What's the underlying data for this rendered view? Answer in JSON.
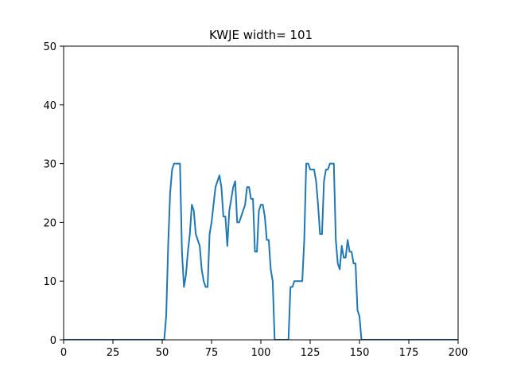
{
  "chart_data": {
    "type": "line",
    "title": "KWJE width= 101",
    "xlabel": "",
    "ylabel": "",
    "xlim": [
      0,
      200
    ],
    "ylim": [
      0,
      50
    ],
    "x_ticks": [
      0,
      25,
      50,
      75,
      100,
      125,
      150,
      175,
      200
    ],
    "y_ticks": [
      0,
      10,
      20,
      30,
      40,
      50
    ],
    "grid": false,
    "line_color": "#1f77b4",
    "series": [
      {
        "x": [
          0,
          51,
          52,
          53,
          54,
          55,
          56,
          57,
          58,
          59,
          60,
          61,
          62,
          63,
          64,
          65,
          66,
          67,
          68,
          69,
          70,
          71,
          72,
          73,
          74,
          75,
          76,
          77,
          78,
          79,
          80,
          81,
          82,
          83,
          84,
          85,
          86,
          87,
          88,
          89,
          90,
          91,
          92,
          93,
          94,
          95,
          96,
          97,
          98,
          99,
          100,
          101,
          102,
          103,
          104,
          105,
          106,
          107,
          108,
          109,
          110,
          111,
          112,
          113,
          114,
          115,
          116,
          117,
          118,
          119,
          120,
          121,
          122,
          123,
          124,
          125,
          126,
          127,
          128,
          129,
          130,
          131,
          132,
          133,
          134,
          135,
          136,
          137,
          138,
          139,
          140,
          141,
          142,
          143,
          144,
          145,
          146,
          147,
          148,
          149,
          150,
          151,
          152,
          153,
          200
        ],
        "y": [
          0,
          0,
          4,
          16,
          25,
          29,
          30,
          30,
          30,
          30,
          15,
          9,
          11,
          15,
          18,
          23,
          22,
          18,
          17,
          16,
          12,
          10,
          9,
          9,
          18,
          20,
          23,
          26,
          27,
          28,
          26,
          21,
          21,
          16,
          22,
          24,
          26,
          27,
          20,
          20,
          21,
          22,
          23,
          26,
          26,
          24,
          24,
          15,
          15,
          22,
          23,
          23,
          21,
          17,
          17,
          12,
          10,
          0,
          0,
          0,
          0,
          0,
          0,
          0,
          0,
          9,
          9,
          10,
          10,
          10,
          10,
          10,
          17,
          30,
          30,
          29,
          29,
          29,
          27,
          23,
          18,
          18,
          27,
          29,
          29,
          30,
          30,
          30,
          17,
          13,
          12,
          16,
          14,
          14,
          17,
          15,
          15,
          13,
          13,
          5,
          4,
          0,
          0,
          0,
          0
        ]
      }
    ]
  }
}
